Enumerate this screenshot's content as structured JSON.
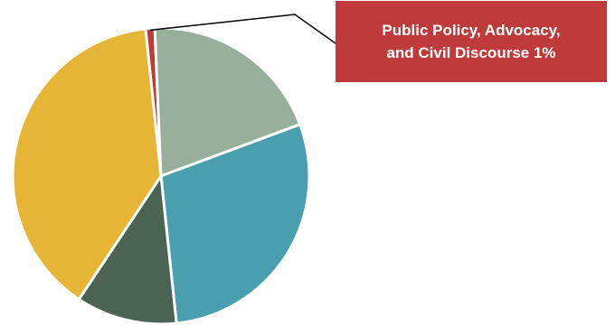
{
  "chart_data": {
    "type": "pie",
    "title": "",
    "slices": [
      {
        "value": 1,
        "color": "#BF3A3A"
      },
      {
        "value": 20,
        "color": "#97AF9B"
      },
      {
        "value": 29,
        "color": "#4A9FAF"
      },
      {
        "value": 11,
        "color": "#4A6352"
      },
      {
        "value": 39,
        "color": "#E6B536"
      }
    ],
    "annotations": [
      {
        "slice_index": 0,
        "text": "Public Policy, Advocacy,\nand Civil Discourse 1%"
      }
    ]
  }
}
